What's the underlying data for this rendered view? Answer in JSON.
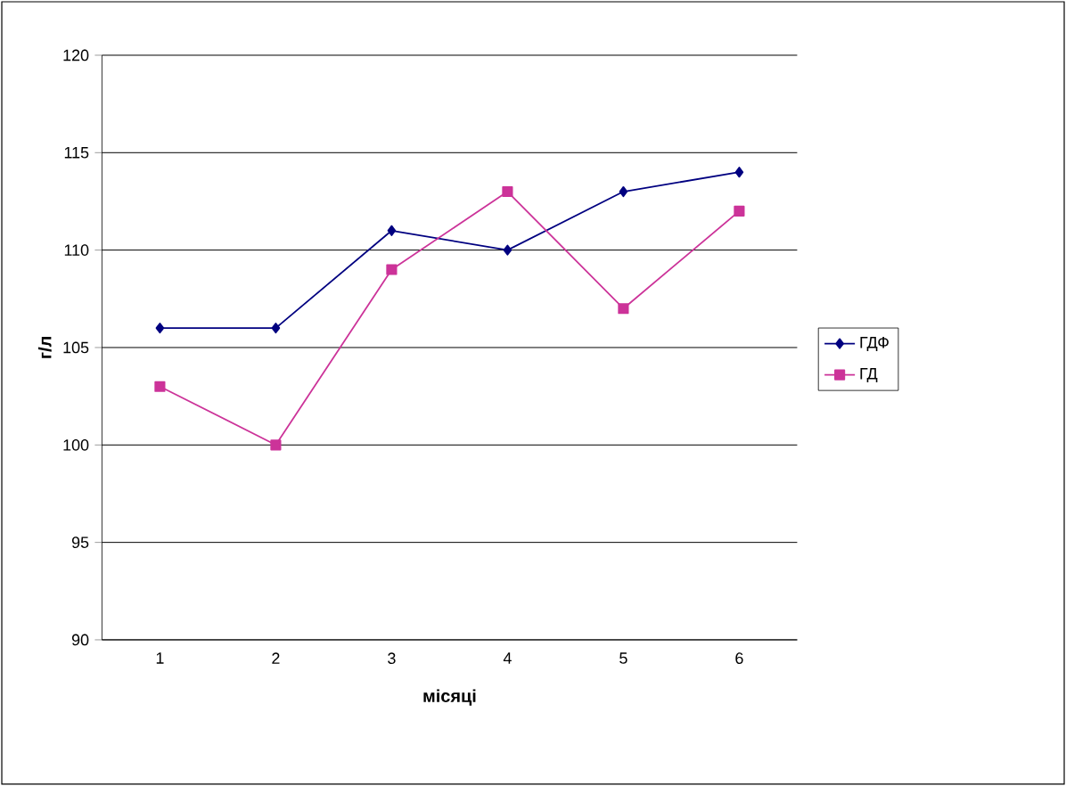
{
  "chart_data": {
    "type": "line",
    "xlabel": "місяці",
    "ylabel": "г/л",
    "categories": [
      "1",
      "2",
      "3",
      "4",
      "5",
      "6"
    ],
    "series": [
      {
        "name": "ГДФ",
        "color": "#000080",
        "marker": "diamond",
        "values": [
          106,
          106,
          111,
          110,
          113,
          114
        ]
      },
      {
        "name": "ГД",
        "color": "#cc3399",
        "marker": "square",
        "values": [
          103,
          100,
          109,
          113,
          107,
          112
        ]
      }
    ],
    "ylim": [
      90,
      120
    ],
    "yticks": [
      90,
      95,
      100,
      105,
      110,
      115,
      120
    ],
    "grid": "y",
    "legend": "right"
  }
}
